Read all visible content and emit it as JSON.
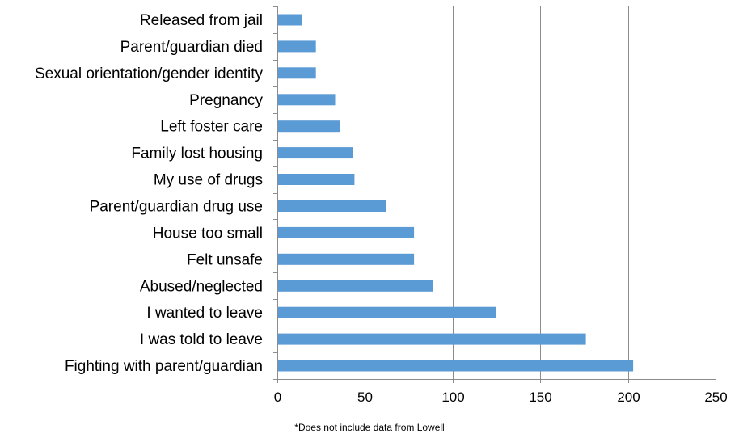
{
  "chart_data": {
    "type": "bar",
    "orientation": "horizontal",
    "categories": [
      "Released from jail",
      "Parent/guardian died",
      "Sexual orientation/gender identity",
      "Pregnancy",
      "Left foster care",
      "Family lost housing",
      "My use of drugs",
      "Parent/guardian drug use",
      "House too small",
      "Felt unsafe",
      "Abused/neglected",
      "I wanted to leave",
      "I was told to leave",
      "Fighting with parent/guardian"
    ],
    "values": [
      14,
      22,
      22,
      33,
      36,
      43,
      44,
      62,
      78,
      78,
      89,
      125,
      176,
      203
    ],
    "title": "",
    "xlabel": "",
    "ylabel": "",
    "xlim": [
      0,
      250
    ],
    "x_ticks": [
      "0",
      "50",
      "100",
      "150",
      "200",
      "250"
    ],
    "x_tick_values": [
      0,
      50,
      100,
      150,
      200,
      250
    ],
    "gridlines": "vertical",
    "legend": "none",
    "bar_color": "#5b9bd5",
    "gridline_color": "#8c8c8c",
    "axis_color": "#8c8c8c"
  },
  "footnote": "*Does not include data from Lowell"
}
